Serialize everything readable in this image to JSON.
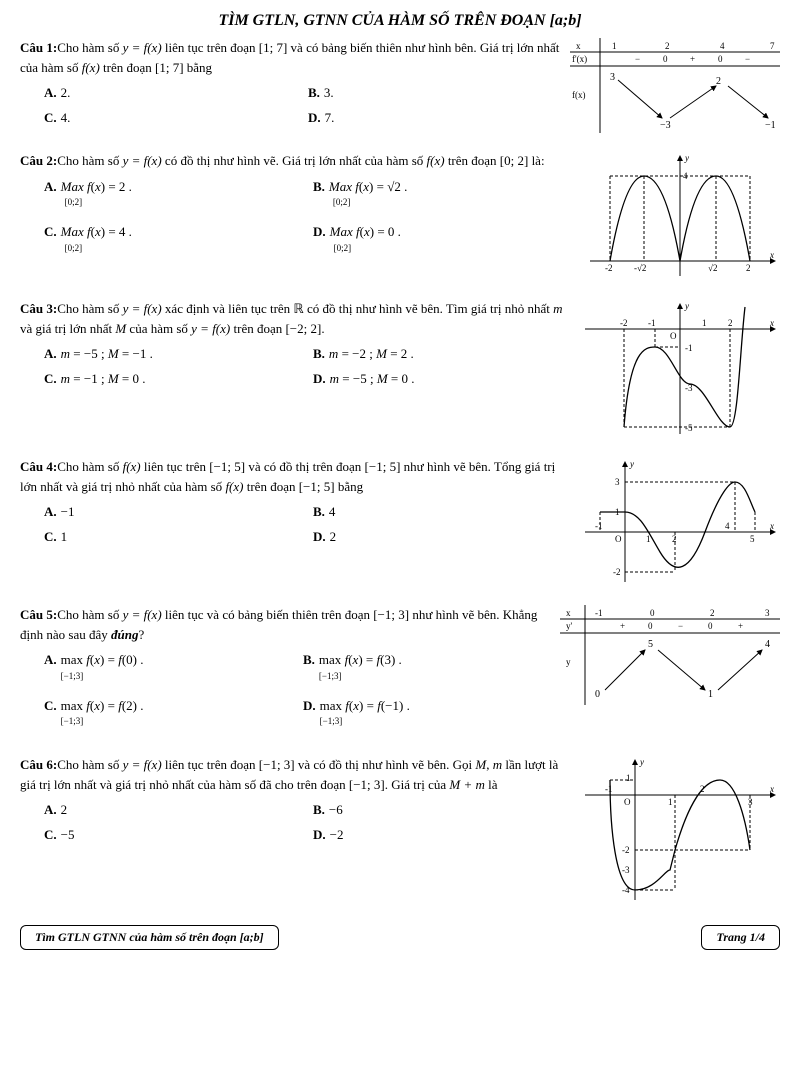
{
  "title": "TÌM GTLN, GTNN CỦA HÀM SỐ TRÊN ĐOẠN [a;b]",
  "q1": {
    "num": "Câu 1:",
    "text": "Cho hàm số <i>y = f(x)</i> liên tục trên đoạn [1; 7] và có bảng biến thiên như hình bên. Giá trị lớn nhất của hàm số <i>f(x)</i> trên đoạn [1; 7] bằng",
    "A": "2.",
    "B": "3.",
    "C": "4.",
    "D": "7.",
    "table": {
      "x_vals": [
        "1",
        "2",
        "4",
        "7"
      ],
      "fp_vals": [
        "−",
        "0",
        "+",
        "0",
        "−"
      ],
      "fx_top": [
        "3",
        "",
        "2",
        ""
      ],
      "fx_bot": [
        "",
        "−3",
        "",
        "−1"
      ]
    }
  },
  "q2": {
    "num": "Câu 2:",
    "text": "Cho hàm số <i>y = f(x)</i> có đồ thị như hình vẽ. Giá trị lớn nhất của hàm số <i>f(x)</i> trên đoạn [0; 2] là:",
    "A": "Max f(x) = 2 .",
    "B": "Max f(x) = √2 .",
    "C": "Max f(x) = 4 .",
    "D": "Max f(x) = 0 .",
    "sub": "[0;2]"
  },
  "q3": {
    "num": "Câu 3:",
    "text": "Cho hàm số <i>y = f(x)</i> xác định và liên tục trên ℝ có đồ thị như hình vẽ bên. Tìm giá trị nhỏ nhất <i>m</i> và giá trị lớn nhất <i>M</i> của hàm số <i>y = f(x)</i> trên đoạn [−2; 2].",
    "A": "m = −5 ; M = −1 .",
    "B": "m = −2 ; M = 2 .",
    "C": "m = −1 ; M = 0 .",
    "D": "m = −5 ; M = 0 ."
  },
  "q4": {
    "num": "Câu 4:",
    "text": "Cho hàm số <i>f(x)</i> liên tục trên [−1; 5] và có đồ thị trên đoạn [−1; 5] như hình vẽ bên. Tổng giá trị lớn nhất và giá trị nhỏ nhất của hàm số <i>f(x)</i> trên đoạn [−1; 5] bằng",
    "A": "−1",
    "B": "4",
    "C": "1",
    "D": "2"
  },
  "q5": {
    "num": "Câu 5:",
    "text": "Cho hàm số <i>y = f(x)</i> liên tục và có bảng biến thiên trên đoạn [−1; 3] như hình vẽ bên. Khẳng định nào sau đây <b><i>đúng</i></b>?",
    "A": "max f(x) = f(0) .",
    "B": "max f(x) = f(3) .",
    "C": "max f(x) = f(2) .",
    "D": "max f(x) = f(−1) .",
    "sub": "[−1;3]",
    "table": {
      "x_vals": [
        "-1",
        "0",
        "2",
        "3"
      ],
      "yp_vals": [
        "+",
        "0",
        "−",
        "0",
        "+"
      ],
      "y_top": [
        "",
        "5",
        "",
        "4"
      ],
      "y_bot": [
        "0",
        "",
        "1",
        ""
      ]
    }
  },
  "q6": {
    "num": "Câu 6:",
    "text": "Cho hàm số <i>y = f(x)</i> liên tục trên đoạn [−1; 3] và có đồ thị như hình vẽ bên. Gọi <i>M</i>, <i>m</i> lần lượt là giá trị lớn nhất và giá trị nhỏ nhất của hàm số đã cho trên đoạn [−1; 3]. Giá trị của <i>M + m</i> là",
    "A": "2",
    "B": "−6",
    "C": "−5",
    "D": "−2"
  },
  "footer_left": "Tìm GTLN GTNN của hàm số trên đoạn [a;b]",
  "footer_right": "Trang 1/4",
  "colors": {
    "axis": "#000000",
    "curve": "#000000",
    "dash": "#000000"
  }
}
